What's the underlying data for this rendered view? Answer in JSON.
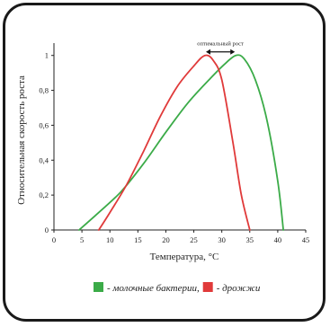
{
  "chart_data": {
    "type": "line",
    "xlabel": "Температура, °C",
    "ylabel": "Относительная скорость роста",
    "xlim": [
      0,
      45
    ],
    "ylim": [
      0,
      1.05
    ],
    "x_ticks": [
      0,
      5,
      10,
      15,
      20,
      25,
      30,
      35,
      40,
      45
    ],
    "y_ticks": [
      0,
      0.2,
      0.4,
      0.6,
      0.8,
      1
    ],
    "y_tick_labels": [
      "0",
      "0,2",
      "0,4",
      "0,6",
      "0,8",
      "1"
    ],
    "grid": false,
    "annotation": "оптимальный рост",
    "series": [
      {
        "name": "- молочные бактерии,",
        "color": "#3bab48",
        "points": [
          [
            4.5,
            0
          ],
          [
            8,
            0.1
          ],
          [
            12,
            0.22
          ],
          [
            16,
            0.38
          ],
          [
            20,
            0.56
          ],
          [
            24,
            0.73
          ],
          [
            28,
            0.87
          ],
          [
            30.5,
            0.95
          ],
          [
            32.5,
            1.0
          ],
          [
            34,
            0.98
          ],
          [
            36,
            0.86
          ],
          [
            38,
            0.64
          ],
          [
            40,
            0.28
          ],
          [
            41,
            0
          ]
        ]
      },
      {
        "name": "- дрожжи",
        "color": "#e03a3a",
        "points": [
          [
            8,
            0
          ],
          [
            10,
            0.1
          ],
          [
            13,
            0.26
          ],
          [
            16,
            0.45
          ],
          [
            19,
            0.65
          ],
          [
            22,
            0.82
          ],
          [
            25,
            0.94
          ],
          [
            27,
            1.0
          ],
          [
            28.5,
            0.97
          ],
          [
            30,
            0.86
          ],
          [
            32,
            0.5
          ],
          [
            33.5,
            0.2
          ],
          [
            35,
            0
          ]
        ]
      }
    ]
  }
}
